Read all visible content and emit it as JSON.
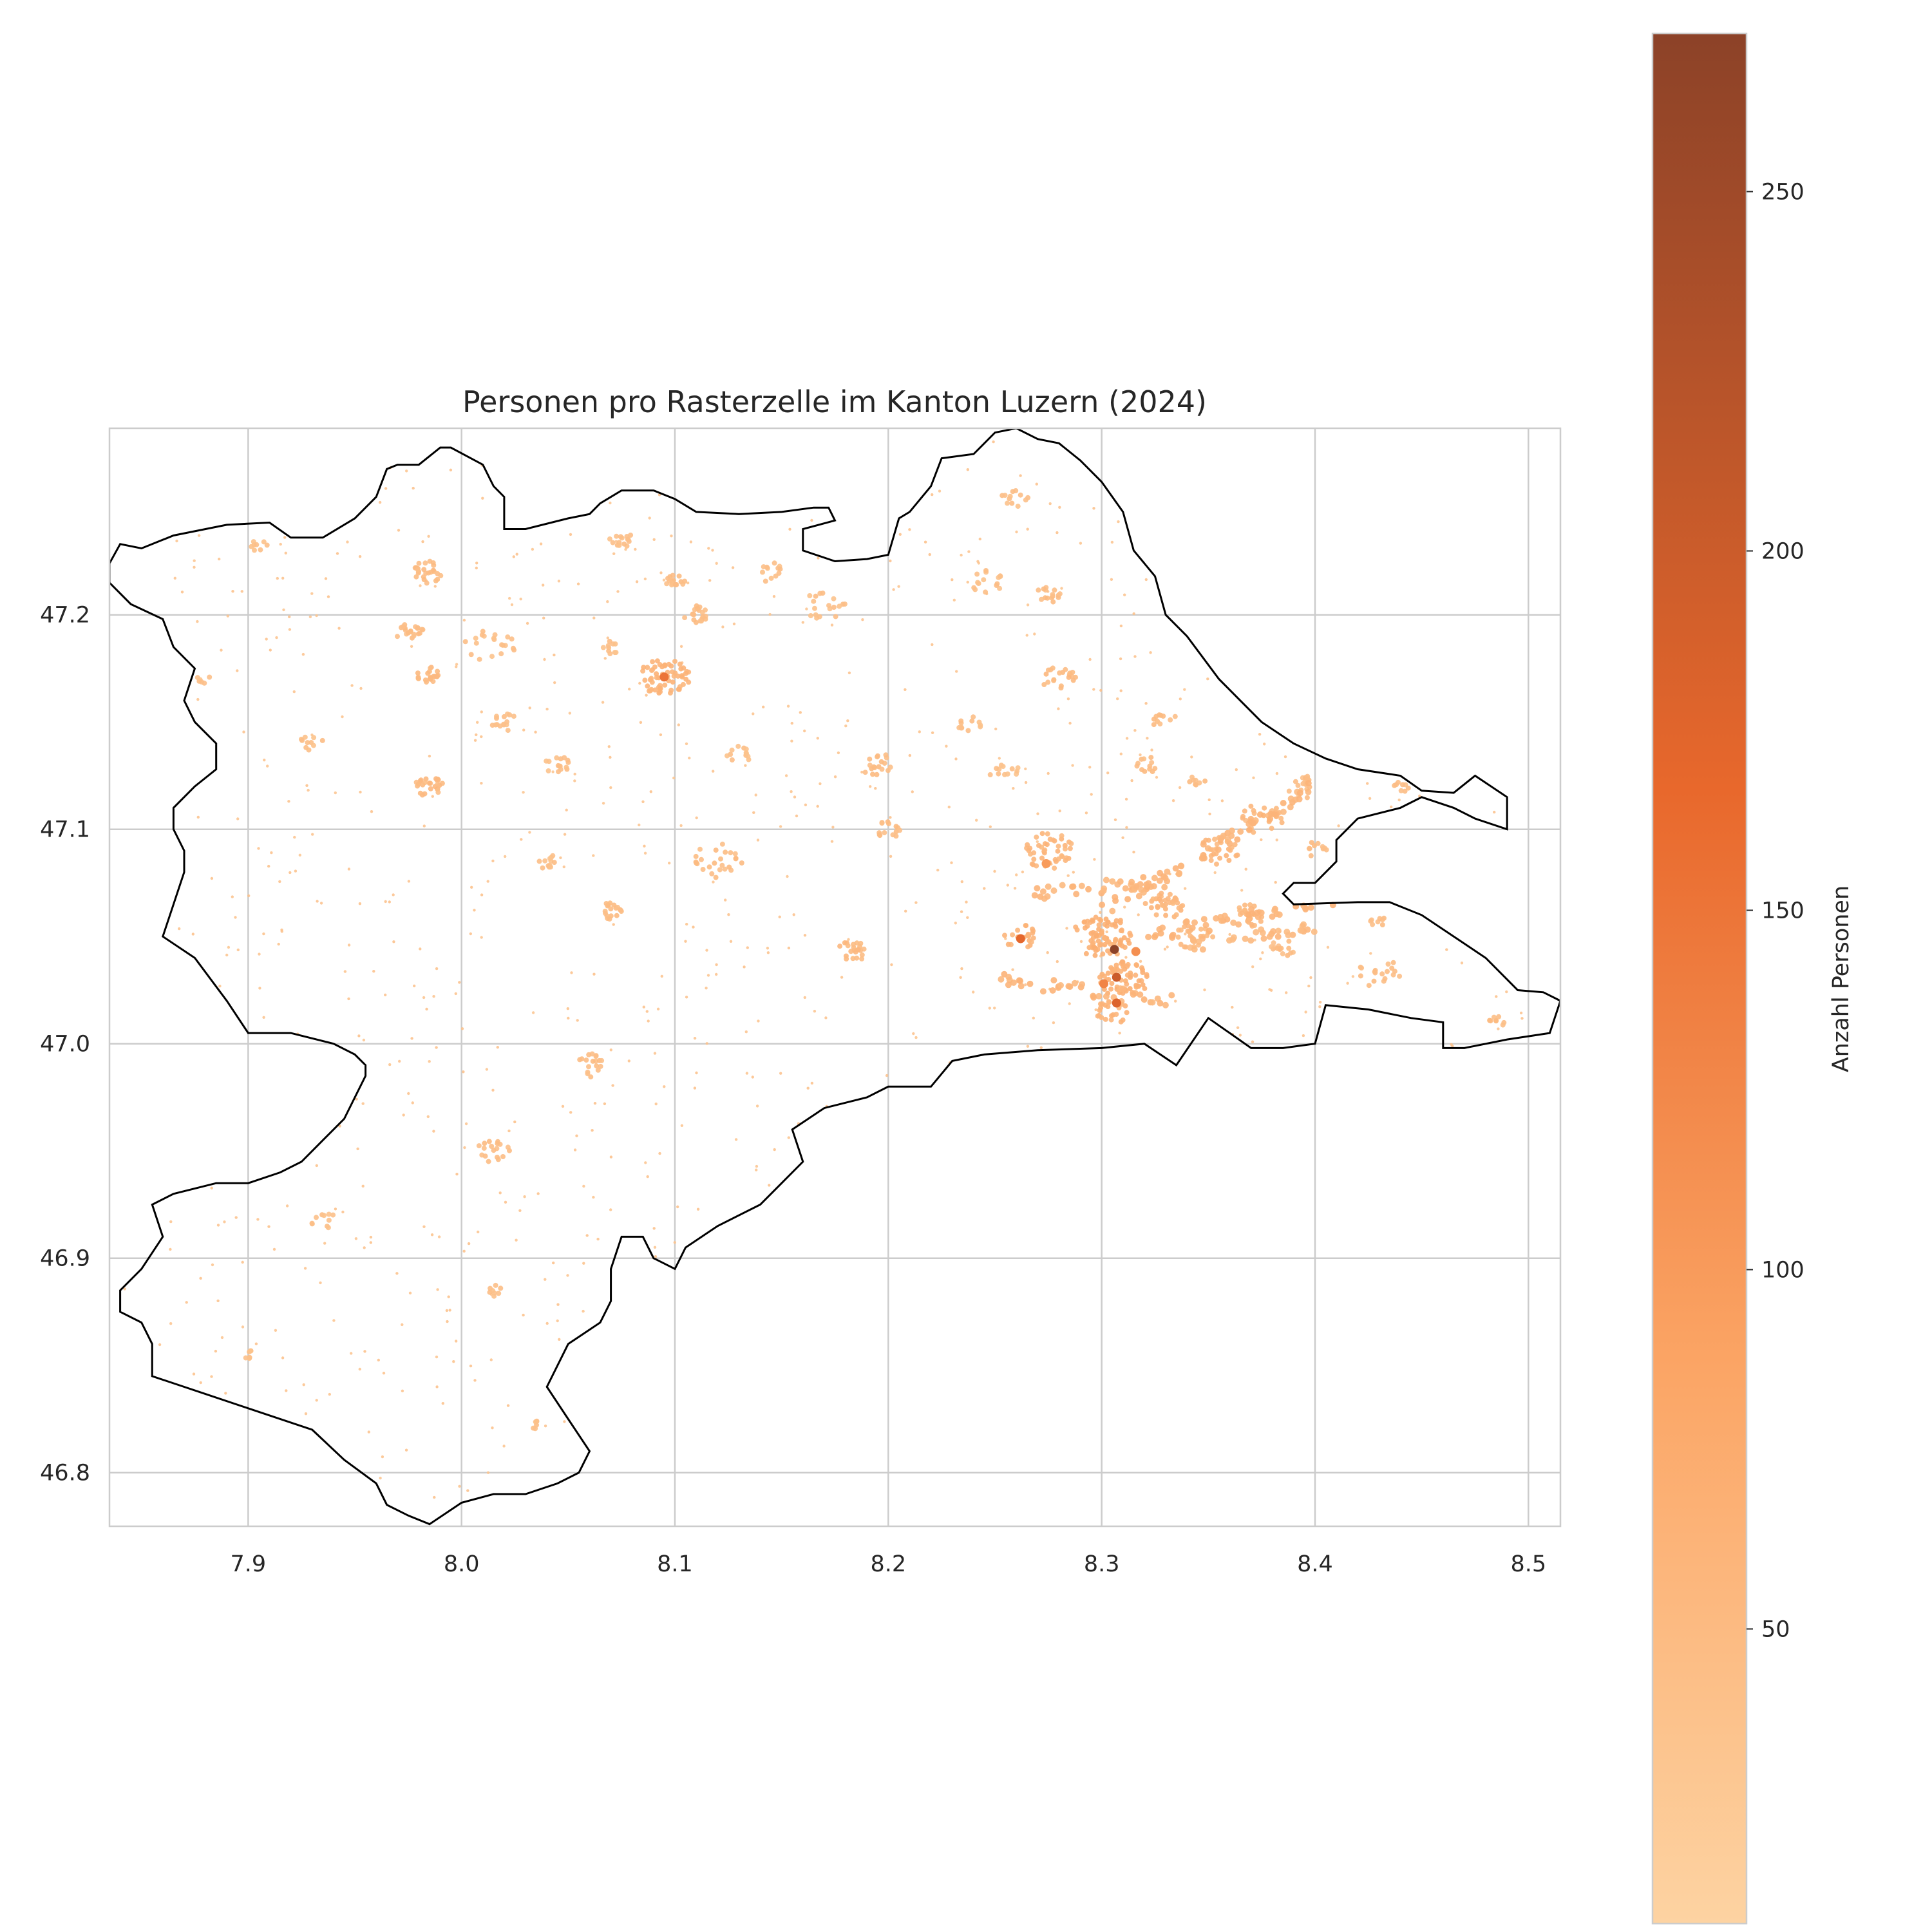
{
  "chart_data": {
    "type": "scatter",
    "title": "Personen pro Rasterzelle im Kanton Luzern (2024)",
    "xlabel": "",
    "ylabel": "",
    "xlim": [
      7.835,
      8.515
    ],
    "ylim": [
      46.775,
      47.287
    ],
    "x_ticks": [
      "7.9",
      "8.0",
      "8.1",
      "8.2",
      "8.3",
      "8.4",
      "8.5"
    ],
    "x_tick_values": [
      7.9,
      8.0,
      8.1,
      8.2,
      8.3,
      8.4,
      8.5
    ],
    "y_ticks": [
      "46.8",
      "46.9",
      "47.0",
      "47.1",
      "47.2"
    ],
    "y_tick_values": [
      46.8,
      46.9,
      47.0,
      47.1,
      47.2
    ],
    "grid": true,
    "colormap": "Oranges",
    "colors": {
      "low": "#fdd3a2",
      "mid": "#f3843c",
      "high": "#8c4228",
      "outline": "#000000",
      "grid": "#cccccc"
    },
    "colorbar": {
      "label": "Anzahl Personen",
      "range": [
        9,
        272
      ],
      "ticks": [
        "50",
        "100",
        "150",
        "200",
        "250"
      ],
      "tick_values": [
        50,
        100,
        150,
        200,
        250
      ]
    },
    "boundary": [
      [
        7.835,
        47.224
      ],
      [
        7.84,
        47.233
      ],
      [
        7.85,
        47.231
      ],
      [
        7.865,
        47.237
      ],
      [
        7.89,
        47.242
      ],
      [
        7.91,
        47.243
      ],
      [
        7.92,
        47.236
      ],
      [
        7.935,
        47.236
      ],
      [
        7.95,
        47.245
      ],
      [
        7.96,
        47.255
      ],
      [
        7.965,
        47.268
      ],
      [
        7.97,
        47.27
      ],
      [
        7.98,
        47.27
      ],
      [
        7.99,
        47.278
      ],
      [
        7.995,
        47.278
      ],
      [
        8.01,
        47.27
      ],
      [
        8.015,
        47.26
      ],
      [
        8.02,
        47.255
      ],
      [
        8.02,
        47.24
      ],
      [
        8.03,
        47.24
      ],
      [
        8.05,
        47.245
      ],
      [
        8.06,
        47.247
      ],
      [
        8.065,
        47.252
      ],
      [
        8.075,
        47.258
      ],
      [
        8.09,
        47.258
      ],
      [
        8.1,
        47.254
      ],
      [
        8.11,
        47.248
      ],
      [
        8.13,
        47.247
      ],
      [
        8.15,
        47.248
      ],
      [
        8.165,
        47.25
      ],
      [
        8.172,
        47.25
      ],
      [
        8.175,
        47.244
      ],
      [
        8.16,
        47.24
      ],
      [
        8.16,
        47.23
      ],
      [
        8.175,
        47.225
      ],
      [
        8.19,
        47.226
      ],
      [
        8.2,
        47.228
      ],
      [
        8.205,
        47.245
      ],
      [
        8.21,
        47.248
      ],
      [
        8.22,
        47.26
      ],
      [
        8.225,
        47.273
      ],
      [
        8.24,
        47.275
      ],
      [
        8.25,
        47.285
      ],
      [
        8.26,
        47.287
      ],
      [
        8.27,
        47.282
      ],
      [
        8.28,
        47.28
      ],
      [
        8.29,
        47.272
      ],
      [
        8.3,
        47.262
      ],
      [
        8.31,
        47.248
      ],
      [
        8.315,
        47.23
      ],
      [
        8.325,
        47.218
      ],
      [
        8.33,
        47.2
      ],
      [
        8.34,
        47.19
      ],
      [
        8.355,
        47.17
      ],
      [
        8.365,
        47.16
      ],
      [
        8.375,
        47.15
      ],
      [
        8.39,
        47.14
      ],
      [
        8.405,
        47.133
      ],
      [
        8.42,
        47.128
      ],
      [
        8.44,
        47.125
      ],
      [
        8.45,
        47.118
      ],
      [
        8.465,
        47.117
      ],
      [
        8.475,
        47.125
      ],
      [
        8.49,
        47.115
      ],
      [
        8.49,
        47.1
      ],
      [
        8.475,
        47.105
      ],
      [
        8.465,
        47.11
      ],
      [
        8.45,
        47.115
      ],
      [
        8.44,
        47.11
      ],
      [
        8.42,
        47.105
      ],
      [
        8.41,
        47.095
      ],
      [
        8.41,
        47.085
      ],
      [
        8.4,
        47.075
      ],
      [
        8.39,
        47.075
      ],
      [
        8.385,
        47.07
      ],
      [
        8.39,
        47.065
      ],
      [
        8.42,
        47.066
      ],
      [
        8.435,
        47.066
      ],
      [
        8.45,
        47.06
      ],
      [
        8.48,
        47.04
      ],
      [
        8.495,
        47.025
      ],
      [
        8.507,
        47.024
      ],
      [
        8.515,
        47.02
      ],
      [
        8.51,
        47.005
      ],
      [
        8.49,
        47.002
      ],
      [
        8.47,
        46.998
      ],
      [
        8.46,
        46.998
      ],
      [
        8.46,
        47.01
      ],
      [
        8.445,
        47.012
      ],
      [
        8.425,
        47.016
      ],
      [
        8.405,
        47.018
      ],
      [
        8.4,
        47.0
      ],
      [
        8.385,
        46.998
      ],
      [
        8.37,
        46.998
      ],
      [
        8.35,
        47.012
      ],
      [
        8.335,
        46.99
      ],
      [
        8.32,
        47.0
      ],
      [
        8.3,
        46.998
      ],
      [
        8.27,
        46.997
      ],
      [
        8.245,
        46.995
      ],
      [
        8.23,
        46.992
      ],
      [
        8.22,
        46.98
      ],
      [
        8.2,
        46.98
      ],
      [
        8.19,
        46.975
      ],
      [
        8.17,
        46.97
      ],
      [
        8.155,
        46.96
      ],
      [
        8.16,
        46.945
      ],
      [
        8.15,
        46.935
      ],
      [
        8.14,
        46.925
      ],
      [
        8.12,
        46.915
      ],
      [
        8.105,
        46.905
      ],
      [
        8.1,
        46.895
      ],
      [
        8.09,
        46.9
      ],
      [
        8.085,
        46.91
      ],
      [
        8.075,
        46.91
      ],
      [
        8.07,
        46.895
      ],
      [
        8.07,
        46.88
      ],
      [
        8.065,
        46.87
      ],
      [
        8.05,
        46.86
      ],
      [
        8.04,
        46.84
      ],
      [
        8.05,
        46.825
      ],
      [
        8.06,
        46.81
      ],
      [
        8.055,
        46.8
      ],
      [
        8.045,
        46.795
      ],
      [
        8.03,
        46.79
      ],
      [
        8.015,
        46.79
      ],
      [
        8.0,
        46.786
      ],
      [
        7.985,
        46.776
      ],
      [
        7.975,
        46.78
      ],
      [
        7.965,
        46.785
      ],
      [
        7.96,
        46.795
      ],
      [
        7.945,
        46.806
      ],
      [
        7.93,
        46.82
      ],
      [
        7.9,
        46.83
      ],
      [
        7.87,
        46.84
      ],
      [
        7.855,
        46.845
      ],
      [
        7.855,
        46.86
      ],
      [
        7.85,
        46.87
      ],
      [
        7.84,
        46.875
      ],
      [
        7.84,
        46.885
      ],
      [
        7.85,
        46.895
      ],
      [
        7.86,
        46.91
      ],
      [
        7.855,
        46.925
      ],
      [
        7.865,
        46.93
      ],
      [
        7.885,
        46.935
      ],
      [
        7.9,
        46.935
      ],
      [
        7.915,
        46.94
      ],
      [
        7.925,
        46.945
      ],
      [
        7.935,
        46.955
      ],
      [
        7.945,
        46.965
      ],
      [
        7.95,
        46.975
      ],
      [
        7.955,
        46.985
      ],
      [
        7.955,
        46.99
      ],
      [
        7.95,
        46.995
      ],
      [
        7.94,
        47.0
      ],
      [
        7.92,
        47.005
      ],
      [
        7.9,
        47.005
      ],
      [
        7.89,
        47.02
      ],
      [
        7.875,
        47.04
      ],
      [
        7.86,
        47.05
      ],
      [
        7.865,
        47.065
      ],
      [
        7.87,
        47.08
      ],
      [
        7.87,
        47.09
      ],
      [
        7.865,
        47.1
      ],
      [
        7.865,
        47.11
      ],
      [
        7.875,
        47.12
      ],
      [
        7.885,
        47.128
      ],
      [
        7.885,
        47.14
      ],
      [
        7.875,
        47.15
      ],
      [
        7.87,
        47.16
      ],
      [
        7.875,
        47.175
      ],
      [
        7.865,
        47.185
      ],
      [
        7.86,
        47.198
      ],
      [
        7.845,
        47.205
      ],
      [
        7.835,
        47.215
      ]
    ],
    "clusters": [
      {
        "x": 8.095,
        "y": 47.171,
        "r": 0.012,
        "n": 60,
        "level": 55
      },
      {
        "x": 8.11,
        "y": 47.2,
        "r": 0.006,
        "n": 20,
        "level": 40
      },
      {
        "x": 8.1,
        "y": 47.215,
        "r": 0.005,
        "n": 15,
        "level": 40
      },
      {
        "x": 7.985,
        "y": 47.22,
        "r": 0.008,
        "n": 25,
        "level": 40
      },
      {
        "x": 7.985,
        "y": 47.172,
        "r": 0.006,
        "n": 20,
        "level": 45
      },
      {
        "x": 7.975,
        "y": 47.193,
        "r": 0.007,
        "n": 20,
        "level": 40
      },
      {
        "x": 7.985,
        "y": 47.12,
        "r": 0.007,
        "n": 25,
        "level": 45
      },
      {
        "x": 8.013,
        "y": 47.185,
        "r": 0.012,
        "n": 20,
        "level": 35
      },
      {
        "x": 8.02,
        "y": 47.15,
        "r": 0.006,
        "n": 15,
        "level": 35
      },
      {
        "x": 8.045,
        "y": 47.13,
        "r": 0.006,
        "n": 15,
        "level": 35
      },
      {
        "x": 8.07,
        "y": 47.185,
        "r": 0.005,
        "n": 10,
        "level": 35
      },
      {
        "x": 8.075,
        "y": 47.235,
        "r": 0.006,
        "n": 15,
        "level": 35
      },
      {
        "x": 8.12,
        "y": 47.085,
        "r": 0.012,
        "n": 25,
        "level": 40
      },
      {
        "x": 8.07,
        "y": 47.062,
        "r": 0.006,
        "n": 18,
        "level": 40
      },
      {
        "x": 8.04,
        "y": 47.085,
        "r": 0.005,
        "n": 12,
        "level": 35
      },
      {
        "x": 8.13,
        "y": 47.135,
        "r": 0.006,
        "n": 12,
        "level": 35
      },
      {
        "x": 8.195,
        "y": 47.13,
        "r": 0.008,
        "n": 18,
        "level": 40
      },
      {
        "x": 8.2,
        "y": 47.1,
        "r": 0.006,
        "n": 15,
        "level": 40
      },
      {
        "x": 8.182,
        "y": 47.043,
        "r": 0.008,
        "n": 22,
        "level": 45
      },
      {
        "x": 8.17,
        "y": 47.205,
        "r": 0.01,
        "n": 18,
        "level": 35
      },
      {
        "x": 8.145,
        "y": 47.22,
        "r": 0.007,
        "n": 12,
        "level": 35
      },
      {
        "x": 8.245,
        "y": 47.215,
        "r": 0.009,
        "n": 15,
        "level": 35
      },
      {
        "x": 8.275,
        "y": 47.208,
        "r": 0.007,
        "n": 15,
        "level": 40
      },
      {
        "x": 8.28,
        "y": 47.17,
        "r": 0.008,
        "n": 20,
        "level": 45
      },
      {
        "x": 8.26,
        "y": 47.255,
        "r": 0.007,
        "n": 12,
        "level": 35
      },
      {
        "x": 8.24,
        "y": 47.15,
        "r": 0.008,
        "n": 12,
        "level": 35
      },
      {
        "x": 8.255,
        "y": 47.127,
        "r": 0.008,
        "n": 12,
        "level": 35
      },
      {
        "x": 8.32,
        "y": 47.13,
        "r": 0.006,
        "n": 12,
        "level": 40
      },
      {
        "x": 8.33,
        "y": 47.15,
        "r": 0.006,
        "n": 10,
        "level": 40
      },
      {
        "x": 8.345,
        "y": 47.123,
        "r": 0.004,
        "n": 8,
        "level": 40
      },
      {
        "x": 8.275,
        "y": 47.09,
        "r": 0.012,
        "n": 45,
        "level": 50
      },
      {
        "x": 8.262,
        "y": 47.05,
        "r": 0.008,
        "n": 20,
        "level": 55
      },
      {
        "x": 8.3,
        "y": 47.05,
        "r": 0.014,
        "n": 80,
        "level": 60
      },
      {
        "x": 8.31,
        "y": 47.03,
        "r": 0.012,
        "n": 60,
        "level": 60
      },
      {
        "x": 8.305,
        "y": 47.015,
        "r": 0.008,
        "n": 25,
        "level": 55
      },
      {
        "x": 8.33,
        "y": 47.065,
        "r": 0.01,
        "n": 35,
        "level": 50
      },
      {
        "x": 8.355,
        "y": 47.09,
        "r": 0.01,
        "n": 30,
        "level": 50
      },
      {
        "x": 8.375,
        "y": 47.105,
        "r": 0.01,
        "n": 25,
        "level": 45
      },
      {
        "x": 8.395,
        "y": 47.12,
        "r": 0.008,
        "n": 18,
        "level": 40
      },
      {
        "x": 8.345,
        "y": 47.05,
        "r": 0.01,
        "n": 25,
        "level": 45
      },
      {
        "x": 8.37,
        "y": 47.06,
        "r": 0.008,
        "n": 20,
        "level": 45
      },
      {
        "x": 8.385,
        "y": 47.045,
        "r": 0.006,
        "n": 15,
        "level": 40
      },
      {
        "x": 8.4,
        "y": 47.09,
        "r": 0.006,
        "n": 10,
        "level": 40
      },
      {
        "x": 8.43,
        "y": 47.033,
        "r": 0.01,
        "n": 18,
        "level": 40
      },
      {
        "x": 8.485,
        "y": 47.01,
        "r": 0.004,
        "n": 8,
        "level": 40
      },
      {
        "x": 8.43,
        "y": 47.057,
        "r": 0.004,
        "n": 8,
        "level": 40
      },
      {
        "x": 8.44,
        "y": 47.12,
        "r": 0.004,
        "n": 8,
        "level": 40
      },
      {
        "x": 8.06,
        "y": 46.99,
        "r": 0.008,
        "n": 18,
        "level": 40
      },
      {
        "x": 8.015,
        "y": 46.95,
        "r": 0.008,
        "n": 18,
        "level": 40
      },
      {
        "x": 8.015,
        "y": 46.885,
        "r": 0.004,
        "n": 8,
        "level": 35
      },
      {
        "x": 7.935,
        "y": 46.918,
        "r": 0.006,
        "n": 10,
        "level": 35
      },
      {
        "x": 7.9,
        "y": 46.855,
        "r": 0.003,
        "n": 6,
        "level": 35
      },
      {
        "x": 7.93,
        "y": 47.14,
        "r": 0.006,
        "n": 10,
        "level": 35
      },
      {
        "x": 7.905,
        "y": 47.232,
        "r": 0.004,
        "n": 8,
        "level": 35
      },
      {
        "x": 7.88,
        "y": 47.17,
        "r": 0.004,
        "n": 6,
        "level": 35
      },
      {
        "x": 7.835,
        "y": 47.228,
        "r": 0.004,
        "n": 8,
        "level": 35
      },
      {
        "x": 8.035,
        "y": 46.822,
        "r": 0.003,
        "n": 6,
        "level": 35
      }
    ],
    "ridges": [
      {
        "from": [
          8.25,
          47.03
        ],
        "to": [
          8.33,
          47.02
        ],
        "n": 40,
        "level": 50
      },
      {
        "from": [
          8.3,
          47.06
        ],
        "to": [
          8.4,
          47.12
        ],
        "n": 70,
        "level": 50
      },
      {
        "from": [
          8.32,
          47.05
        ],
        "to": [
          8.42,
          47.07
        ],
        "n": 50,
        "level": 50
      },
      {
        "from": [
          8.34,
          47.045
        ],
        "to": [
          8.4,
          47.055
        ],
        "n": 30,
        "level": 45
      },
      {
        "from": [
          8.27,
          47.07
        ],
        "to": [
          8.32,
          47.075
        ],
        "n": 30,
        "level": 50
      }
    ],
    "hotspots": [
      {
        "x": 8.306,
        "y": 47.044,
        "value": 272
      },
      {
        "x": 8.307,
        "y": 47.031,
        "value": 200
      },
      {
        "x": 8.307,
        "y": 47.019,
        "value": 180
      },
      {
        "x": 8.262,
        "y": 47.049,
        "value": 170
      },
      {
        "x": 8.095,
        "y": 47.171,
        "value": 150
      },
      {
        "x": 8.301,
        "y": 47.028,
        "value": 130
      },
      {
        "x": 8.316,
        "y": 47.043,
        "value": 115
      },
      {
        "x": 8.274,
        "y": 47.084,
        "value": 100
      }
    ],
    "background": {
      "n": 1400,
      "level": 35
    }
  }
}
